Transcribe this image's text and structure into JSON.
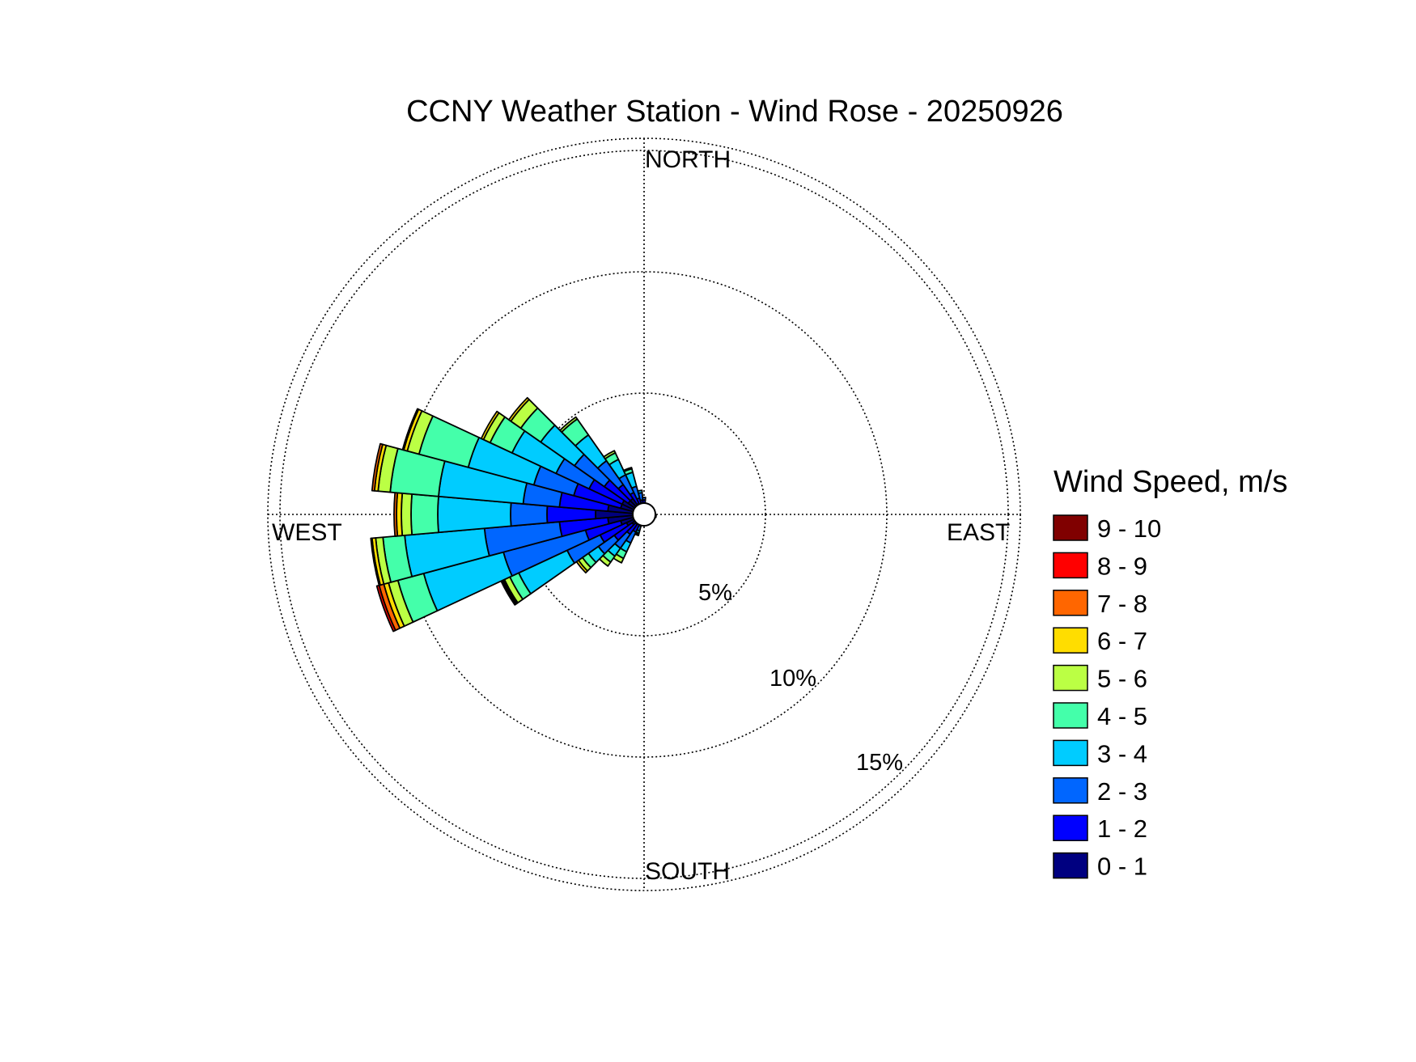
{
  "chart_data": {
    "type": "wind_rose",
    "title": "CCNY Weather Station - Wind Rose - 20250926",
    "direction_labels": {
      "north": "NORTH",
      "east": "EAST",
      "south": "SOUTH",
      "west": "WEST"
    },
    "ring_values": [
      5,
      10,
      15
    ],
    "ring_labels": [
      "5%",
      "10%",
      "15%"
    ],
    "rmax": 15.5,
    "legend_title": "Wind Speed, m/s",
    "bins": [
      {
        "label": "0 - 1",
        "color": "#000080"
      },
      {
        "label": "1 - 2",
        "color": "#0000ff"
      },
      {
        "label": "2 - 3",
        "color": "#0066ff"
      },
      {
        "label": "3 - 4",
        "color": "#00ccff"
      },
      {
        "label": "4 - 5",
        "color": "#44ffaa"
      },
      {
        "label": "5 - 6",
        "color": "#bbff44"
      },
      {
        "label": "6 - 7",
        "color": "#ffdd00"
      },
      {
        "label": "7 - 8",
        "color": "#ff6600"
      },
      {
        "label": "8 - 9",
        "color": "#ff0000"
      },
      {
        "label": "9 - 10",
        "color": "#800000"
      }
    ],
    "sector_width_deg": 10,
    "sectors": [
      {
        "direction_deg": 200,
        "cumulative_percent": [
          0.3,
          0.5,
          0.7,
          0.8,
          0.85,
          0.9
        ]
      },
      {
        "direction_deg": 210,
        "cumulative_percent": [
          0.4,
          0.8,
          1.3,
          1.7,
          2.0,
          2.2
        ]
      },
      {
        "direction_deg": 220,
        "cumulative_percent": [
          0.5,
          1.0,
          1.7,
          2.1,
          2.4,
          2.6
        ]
      },
      {
        "direction_deg": 230,
        "cumulative_percent": [
          0.6,
          1.5,
          2.3,
          2.8,
          3.1,
          3.3,
          3.4
        ]
      },
      {
        "direction_deg": 240,
        "cumulative_percent": [
          0.8,
          2.0,
          3.5,
          5.7,
          6.1,
          6.35,
          6.4,
          6.45,
          6.5
        ]
      },
      {
        "direction_deg": 250,
        "cumulative_percent": [
          1.0,
          2.5,
          6.0,
          9.4,
          10.5,
          10.9,
          11.1,
          11.3,
          11.4
        ]
      },
      {
        "direction_deg": 260,
        "cumulative_percent": [
          1.5,
          3.5,
          6.6,
          9.9,
          10.8,
          11.1,
          11.25,
          11.3
        ]
      },
      {
        "direction_deg": 270,
        "cumulative_percent": [
          2.0,
          4.0,
          5.5,
          8.5,
          9.6,
          10.0,
          10.2,
          10.3
        ]
      },
      {
        "direction_deg": 280,
        "cumulative_percent": [
          1.5,
          3.5,
          5.0,
          8.5,
          10.5,
          11.0,
          11.15,
          11.25
        ]
      },
      {
        "direction_deg": 290,
        "cumulative_percent": [
          1.0,
          3.0,
          4.7,
          7.5,
          9.6,
          10.1,
          10.25,
          10.3
        ]
      },
      {
        "direction_deg": 300,
        "cumulative_percent": [
          1.0,
          2.5,
          4.0,
          6.0,
          7.0,
          7.3,
          7.4
        ]
      },
      {
        "direction_deg": 310,
        "cumulative_percent": [
          0.8,
          2.0,
          3.5,
          5.2,
          6.2,
          6.7,
          6.8
        ]
      },
      {
        "direction_deg": 320,
        "cumulative_percent": [
          0.8,
          1.5,
          2.7,
          4.0,
          4.8,
          4.9
        ]
      },
      {
        "direction_deg": 330,
        "cumulative_percent": [
          0.5,
          1.0,
          1.8,
          2.5,
          2.8,
          2.9
        ]
      },
      {
        "direction_deg": 340,
        "cumulative_percent": [
          0.4,
          0.7,
          1.2,
          1.8,
          1.95,
          2.0
        ]
      },
      {
        "direction_deg": 350,
        "cumulative_percent": [
          0.3,
          0.6,
          0.9,
          1.0
        ]
      },
      {
        "direction_deg": 0,
        "cumulative_percent": [
          0.3,
          0.6,
          0.7
        ]
      },
      {
        "direction_deg": 90,
        "cumulative_percent": [
          0.35,
          0.45
        ]
      },
      {
        "direction_deg": 100,
        "cumulative_percent": [
          0.4,
          0.5
        ]
      },
      {
        "direction_deg": 110,
        "cumulative_percent": [
          0.35,
          0.45
        ]
      }
    ]
  }
}
